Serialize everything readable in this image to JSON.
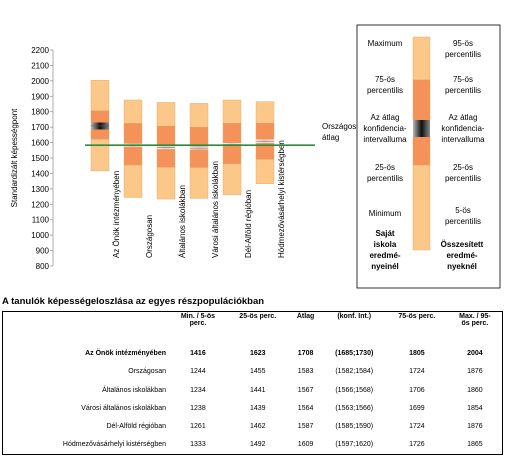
{
  "chart_data": {
    "type": "percentile-bars",
    "y_label": "Standardizált képességpont",
    "categories": [
      "Az Önök intézményében",
      "Országosan",
      "Általános iskolákban",
      "Városi általános iskolákban",
      "Dél-Alföld régióban",
      "Hódmezővásárhelyi kistérségben"
    ],
    "min": [
      1416,
      1244,
      1234,
      1238,
      1261,
      1333
    ],
    "p25": [
      1623,
      1455,
      1441,
      1439,
      1462,
      1492
    ],
    "mean": [
      1708,
      1583,
      1567,
      1564,
      1587,
      1609
    ],
    "ci_low": [
      1685,
      1582,
      1566,
      1563,
      1585,
      1597
    ],
    "ci_high": [
      1730,
      1584,
      1568,
      1566,
      1590,
      1620
    ],
    "p75": [
      1805,
      1724,
      1706,
      1699,
      1724,
      1726
    ],
    "max": [
      2004,
      1876,
      1860,
      1854,
      1876,
      1865
    ],
    "ci_colors": [
      "#111111",
      "#d8d8d8",
      "#d8d8d8",
      "#d8d8d8",
      "#d8d8d8",
      "#d8d8d8"
    ],
    "outer_color": "#fcc88a",
    "inner_color": "#f4925a",
    "reference": 1583,
    "reference_label": [
      "Országos",
      "átlag"
    ],
    "reference_color": "#2e8b3a",
    "ylim": [
      800,
      2200
    ],
    "yticks": [
      800,
      900,
      1000,
      1100,
      1200,
      1300,
      1400,
      1500,
      1600,
      1700,
      1800,
      1900,
      2000,
      2100,
      2200
    ],
    "legend": {
      "left": [
        [
          "Maximum"
        ],
        [
          "75-ös",
          "percentilis"
        ],
        [
          "Az átlag",
          "konfidencia-",
          "intervalluma"
        ],
        [
          "25-ös",
          "percentilis"
        ],
        [
          "Minimum"
        ]
      ],
      "right": [
        [
          "95-ös",
          "percentilis"
        ],
        [
          "75-ös",
          "percentilis"
        ],
        [
          "Az átlag",
          "konfidencia-",
          "intervalluma"
        ],
        [
          "25-ös",
          "percentilis"
        ],
        [
          "5-ös",
          "percentilis"
        ]
      ],
      "left_caption": [
        "Saját",
        "iskola",
        "eredmé-",
        "nyeinél"
      ],
      "right_caption": [
        "Összesített",
        "eredmé-",
        "nyeknél"
      ]
    }
  },
  "table": {
    "title": "A tanulók képességeloszlása az egyes részpopulációkban",
    "header": [
      [
        "Min. / 5-ös",
        "perc."
      ],
      [
        "25-ös perc."
      ],
      [
        "Átlag"
      ],
      [
        "(konf. Int.)"
      ],
      [
        "75-ös perc."
      ],
      [
        "Max. / 95-",
        "ös perc."
      ]
    ],
    "rows": [
      [
        "Az Önök intézményében",
        1416,
        1623,
        1708,
        "(1685;1730)",
        1805,
        2004
      ],
      [
        "Országosan",
        1244,
        1455,
        1583,
        "(1582;1584)",
        1724,
        1876
      ],
      [
        "Általános iskolákban",
        1234,
        1441,
        1567,
        "(1566;1568)",
        1706,
        1860
      ],
      [
        "Városi általános iskolákban",
        1238,
        1439,
        1564,
        "(1563;1566)",
        1699,
        1854
      ],
      [
        "Dél-Alföld régióban",
        1261,
        1462,
        1587,
        "(1585;1590)",
        1724,
        1876
      ],
      [
        "Hódmezővásárhelyi kistérségben",
        1333,
        1492,
        1609,
        "(1597;1620)",
        1726,
        1865
      ]
    ]
  }
}
